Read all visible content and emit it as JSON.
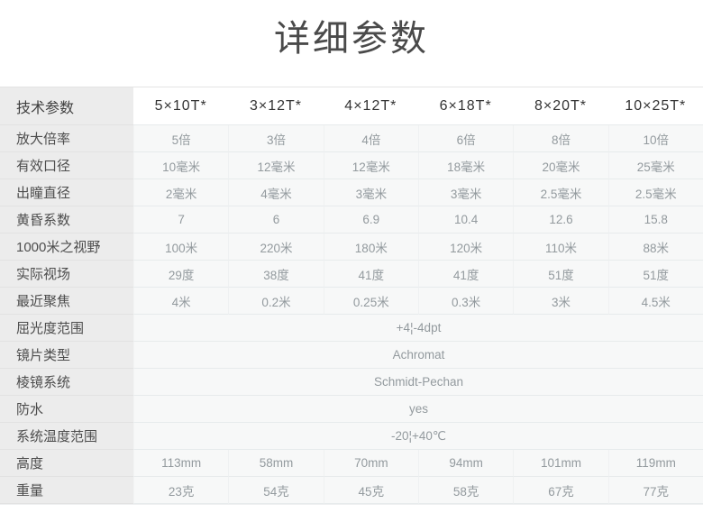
{
  "title": "详细参数",
  "colors": {
    "label_column_bg": "#ececec",
    "data_cell_bg": "#f7f8f8",
    "header_text": "#333333",
    "label_text": "#4d4d4d",
    "value_text": "#939a9e",
    "row_border": "#e7ebec"
  },
  "table": {
    "header": {
      "label": "技术参数",
      "models": [
        "5×10T*",
        "3×12T*",
        "4×12T*",
        "6×18T*",
        "8×20T*",
        "10×25T*"
      ]
    },
    "rows": [
      {
        "label": "放大倍率",
        "values": [
          "5倍",
          "3倍",
          "4倍",
          "6倍",
          "8倍",
          "10倍"
        ]
      },
      {
        "label": "有效口径",
        "values": [
          "10毫米",
          "12毫米",
          "12毫米",
          "18毫米",
          "20毫米",
          "25毫米"
        ]
      },
      {
        "label": "出瞳直径",
        "values": [
          "2毫米",
          "4毫米",
          "3毫米",
          "3毫米",
          "2.5毫米",
          "2.5毫米"
        ]
      },
      {
        "label": "黄昏系数",
        "values": [
          "7",
          "6",
          "6.9",
          "10.4",
          "12.6",
          "15.8"
        ]
      },
      {
        "label": "1000米之视野",
        "values": [
          "100米",
          "220米",
          "180米",
          "120米",
          "110米",
          "88米"
        ]
      },
      {
        "label": "实际视场",
        "values": [
          "29度",
          "38度",
          "41度",
          "41度",
          "51度",
          "51度"
        ]
      },
      {
        "label": "最近聚焦",
        "values": [
          "4米",
          "0.2米",
          "0.25米",
          "0.3米",
          "3米",
          "4.5米"
        ]
      },
      {
        "label": "屈光度范围",
        "span": "+4¦-4dpt"
      },
      {
        "label": "镜片类型",
        "span": "Achromat"
      },
      {
        "label": "棱镜系统",
        "span": "Schmidt-Pechan"
      },
      {
        "label": "防水",
        "span": "yes"
      },
      {
        "label": "系统温度范围",
        "span": "-20¦+40℃"
      },
      {
        "label": "高度",
        "values": [
          "113mm",
          "58mm",
          "70mm",
          "94mm",
          "101mm",
          "119mm"
        ]
      },
      {
        "label": "重量",
        "values": [
          "23克",
          "54克",
          "45克",
          "58克",
          "67克",
          "77克"
        ]
      }
    ]
  }
}
